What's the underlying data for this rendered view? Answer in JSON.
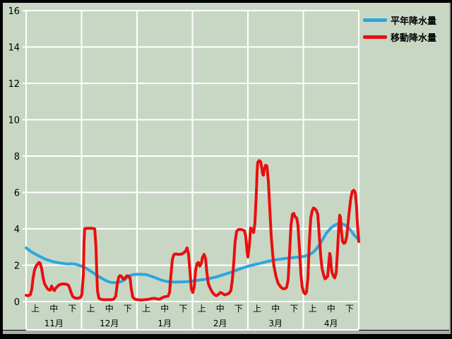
{
  "window": {
    "title": ""
  },
  "colors": {
    "background": "#c8d7c4",
    "grid": "#ffffff",
    "text": "#000000",
    "border": "#000000",
    "bezel": "#a9ada9",
    "series_blue": "#2ba6e0",
    "series_red": "#e80f0f"
  },
  "legend": {
    "items": [
      {
        "label": "平年降水量",
        "color": "#2ba6e0"
      },
      {
        "label": "移動降水量",
        "color": "#e80f0f"
      }
    ]
  },
  "chart_data": {
    "type": "line",
    "title": "",
    "xlabel": "",
    "ylabel": "",
    "ylim": [
      0,
      16
    ],
    "y_ticks": [
      0,
      2,
      4,
      6,
      8,
      10,
      12,
      14,
      16
    ],
    "grid": true,
    "legend_position": "top-right",
    "x_axis": {
      "unit": "10-day period (旬); x = period index, 3 per month, 0 = start of 11月上, 18 = end of 4月下",
      "months": [
        "11月",
        "12月",
        "1月",
        "2月",
        "3月",
        "4月"
      ],
      "period_labels": [
        "上",
        "中",
        "下"
      ]
    },
    "series": [
      {
        "name": "平年降水量",
        "color": "#2ba6e0",
        "width": 4,
        "points": [
          [
            0,
            2.95
          ],
          [
            0.31,
            2.72
          ],
          [
            0.69,
            2.5
          ],
          [
            1.07,
            2.32
          ],
          [
            1.45,
            2.2
          ],
          [
            1.83,
            2.12
          ],
          [
            2.22,
            2.07
          ],
          [
            2.48,
            2.08
          ],
          [
            2.71,
            2.05
          ],
          [
            2.9,
            1.98
          ],
          [
            3.1,
            1.9
          ],
          [
            3.29,
            1.8
          ],
          [
            3.48,
            1.68
          ],
          [
            3.67,
            1.55
          ],
          [
            3.86,
            1.42
          ],
          [
            4.05,
            1.3
          ],
          [
            4.24,
            1.2
          ],
          [
            4.43,
            1.1
          ],
          [
            4.62,
            1.05
          ],
          [
            4.82,
            1.04
          ],
          [
            5.01,
            1.06
          ],
          [
            5.2,
            1.12
          ],
          [
            5.39,
            1.25
          ],
          [
            5.58,
            1.4
          ],
          [
            5.77,
            1.48
          ],
          [
            5.96,
            1.5
          ],
          [
            6.23,
            1.5
          ],
          [
            6.5,
            1.48
          ],
          [
            6.69,
            1.42
          ],
          [
            6.88,
            1.35
          ],
          [
            7.07,
            1.28
          ],
          [
            7.26,
            1.2
          ],
          [
            7.45,
            1.14
          ],
          [
            7.64,
            1.1
          ],
          [
            7.83,
            1.08
          ],
          [
            8.14,
            1.07
          ],
          [
            8.45,
            1.08
          ],
          [
            8.75,
            1.1
          ],
          [
            9.06,
            1.14
          ],
          [
            9.36,
            1.18
          ],
          [
            9.67,
            1.22
          ],
          [
            9.97,
            1.28
          ],
          [
            10.28,
            1.35
          ],
          [
            10.59,
            1.45
          ],
          [
            10.89,
            1.55
          ],
          [
            11.2,
            1.65
          ],
          [
            11.5,
            1.77
          ],
          [
            11.81,
            1.88
          ],
          [
            12.11,
            1.97
          ],
          [
            12.42,
            2.05
          ],
          [
            12.73,
            2.12
          ],
          [
            13.03,
            2.2
          ],
          [
            13.34,
            2.27
          ],
          [
            13.64,
            2.32
          ],
          [
            13.95,
            2.36
          ],
          [
            14.25,
            2.4
          ],
          [
            14.56,
            2.43
          ],
          [
            14.87,
            2.46
          ],
          [
            15.1,
            2.5
          ],
          [
            15.32,
            2.58
          ],
          [
            15.52,
            2.7
          ],
          [
            15.67,
            2.85
          ],
          [
            15.78,
            3.0
          ],
          [
            15.9,
            3.15
          ],
          [
            16.01,
            3.35
          ],
          [
            16.13,
            3.55
          ],
          [
            16.24,
            3.75
          ],
          [
            16.36,
            3.9
          ],
          [
            16.47,
            4.02
          ],
          [
            16.58,
            4.12
          ],
          [
            16.7,
            4.2
          ],
          [
            16.81,
            4.26
          ],
          [
            16.97,
            4.28
          ],
          [
            17.12,
            4.27
          ],
          [
            17.27,
            4.2
          ],
          [
            17.42,
            4.08
          ],
          [
            17.58,
            3.9
          ],
          [
            17.73,
            3.68
          ],
          [
            17.84,
            3.55
          ],
          [
            17.92,
            3.47
          ],
          [
            18,
            3.4
          ]
        ]
      },
      {
        "name": "移動降水量",
        "color": "#e80f0f",
        "width": 4,
        "points": [
          [
            0,
            0.35
          ],
          [
            0.11,
            0.32
          ],
          [
            0.23,
            0.38
          ],
          [
            0.31,
            0.7
          ],
          [
            0.38,
            1.3
          ],
          [
            0.46,
            1.75
          ],
          [
            0.54,
            1.95
          ],
          [
            0.61,
            2.05
          ],
          [
            0.69,
            2.15
          ],
          [
            0.76,
            2.1
          ],
          [
            0.84,
            1.8
          ],
          [
            0.92,
            1.3
          ],
          [
            0.99,
            1.0
          ],
          [
            1.07,
            0.85
          ],
          [
            1.15,
            0.72
          ],
          [
            1.22,
            0.65
          ],
          [
            1.3,
            0.63
          ],
          [
            1.38,
            0.85
          ],
          [
            1.45,
            0.7
          ],
          [
            1.53,
            0.6
          ],
          [
            1.61,
            0.75
          ],
          [
            1.68,
            0.82
          ],
          [
            1.76,
            0.9
          ],
          [
            1.87,
            0.95
          ],
          [
            2.03,
            0.97
          ],
          [
            2.18,
            0.95
          ],
          [
            2.29,
            0.9
          ],
          [
            2.37,
            0.7
          ],
          [
            2.45,
            0.45
          ],
          [
            2.52,
            0.28
          ],
          [
            2.64,
            0.2
          ],
          [
            2.79,
            0.18
          ],
          [
            2.94,
            0.22
          ],
          [
            3.02,
            0.4
          ],
          [
            3.1,
            1.5
          ],
          [
            3.13,
            3.2
          ],
          [
            3.17,
            4.0
          ],
          [
            3.25,
            4.03
          ],
          [
            3.4,
            4.03
          ],
          [
            3.55,
            4.03
          ],
          [
            3.71,
            4.0
          ],
          [
            3.78,
            3.0
          ],
          [
            3.82,
            1.6
          ],
          [
            3.86,
            0.6
          ],
          [
            3.94,
            0.18
          ],
          [
            4.05,
            0.12
          ],
          [
            4.2,
            0.1
          ],
          [
            4.39,
            0.1
          ],
          [
            4.59,
            0.1
          ],
          [
            4.74,
            0.13
          ],
          [
            4.85,
            0.3
          ],
          [
            4.93,
            0.95
          ],
          [
            5.01,
            1.35
          ],
          [
            5.08,
            1.43
          ],
          [
            5.16,
            1.38
          ],
          [
            5.24,
            1.25
          ],
          [
            5.31,
            1.22
          ],
          [
            5.39,
            1.35
          ],
          [
            5.47,
            1.42
          ],
          [
            5.54,
            1.4
          ],
          [
            5.62,
            1.3
          ],
          [
            5.69,
            0.7
          ],
          [
            5.77,
            0.25
          ],
          [
            5.89,
            0.13
          ],
          [
            6.04,
            0.1
          ],
          [
            6.23,
            0.08
          ],
          [
            6.42,
            0.1
          ],
          [
            6.61,
            0.12
          ],
          [
            6.76,
            0.16
          ],
          [
            6.92,
            0.18
          ],
          [
            7.07,
            0.15
          ],
          [
            7.22,
            0.13
          ],
          [
            7.38,
            0.22
          ],
          [
            7.53,
            0.27
          ],
          [
            7.68,
            0.3
          ],
          [
            7.76,
            0.5
          ],
          [
            7.83,
            1.4
          ],
          [
            7.91,
            2.3
          ],
          [
            7.99,
            2.58
          ],
          [
            8.1,
            2.62
          ],
          [
            8.22,
            2.6
          ],
          [
            8.33,
            2.6
          ],
          [
            8.45,
            2.63
          ],
          [
            8.56,
            2.7
          ],
          [
            8.64,
            2.8
          ],
          [
            8.71,
            2.95
          ],
          [
            8.79,
            2.6
          ],
          [
            8.87,
            1.6
          ],
          [
            8.94,
            0.7
          ],
          [
            9.02,
            0.5
          ],
          [
            9.1,
            0.8
          ],
          [
            9.17,
            1.7
          ],
          [
            9.25,
            2.1
          ],
          [
            9.32,
            2.15
          ],
          [
            9.4,
            1.95
          ],
          [
            9.48,
            2.1
          ],
          [
            9.55,
            2.45
          ],
          [
            9.63,
            2.6
          ],
          [
            9.71,
            2.35
          ],
          [
            9.78,
            1.6
          ],
          [
            9.86,
            1.0
          ],
          [
            9.94,
            0.78
          ],
          [
            10.05,
            0.55
          ],
          [
            10.17,
            0.4
          ],
          [
            10.28,
            0.32
          ],
          [
            10.39,
            0.38
          ],
          [
            10.51,
            0.5
          ],
          [
            10.62,
            0.45
          ],
          [
            10.74,
            0.37
          ],
          [
            10.85,
            0.4
          ],
          [
            10.97,
            0.45
          ],
          [
            11.08,
            0.6
          ],
          [
            11.16,
            1.2
          ],
          [
            11.24,
            2.2
          ],
          [
            11.31,
            3.3
          ],
          [
            11.39,
            3.85
          ],
          [
            11.47,
            3.95
          ],
          [
            11.58,
            3.97
          ],
          [
            11.69,
            3.95
          ],
          [
            11.81,
            3.9
          ],
          [
            11.88,
            3.6
          ],
          [
            11.96,
            2.7
          ],
          [
            12.0,
            2.45
          ],
          [
            12.08,
            3.1
          ],
          [
            12.15,
            4.05
          ],
          [
            12.23,
            3.95
          ],
          [
            12.31,
            3.8
          ],
          [
            12.38,
            4.3
          ],
          [
            12.46,
            6.0
          ],
          [
            12.5,
            7.2
          ],
          [
            12.53,
            7.65
          ],
          [
            12.61,
            7.75
          ],
          [
            12.69,
            7.68
          ],
          [
            12.76,
            7.3
          ],
          [
            12.8,
            7.0
          ],
          [
            12.84,
            6.95
          ],
          [
            12.88,
            7.25
          ],
          [
            12.96,
            7.5
          ],
          [
            13.03,
            7.45
          ],
          [
            13.11,
            6.6
          ],
          [
            13.18,
            5.2
          ],
          [
            13.26,
            3.6
          ],
          [
            13.34,
            2.6
          ],
          [
            13.41,
            1.95
          ],
          [
            13.53,
            1.35
          ],
          [
            13.64,
            1.0
          ],
          [
            13.76,
            0.82
          ],
          [
            13.87,
            0.72
          ],
          [
            13.99,
            0.7
          ],
          [
            14.1,
            0.78
          ],
          [
            14.18,
            1.2
          ],
          [
            14.25,
            2.6
          ],
          [
            14.33,
            4.2
          ],
          [
            14.41,
            4.8
          ],
          [
            14.48,
            4.85
          ],
          [
            14.56,
            4.65
          ],
          [
            14.64,
            4.6
          ],
          [
            14.71,
            4.2
          ],
          [
            14.79,
            2.9
          ],
          [
            14.87,
            1.5
          ],
          [
            14.94,
            0.8
          ],
          [
            15.02,
            0.52
          ],
          [
            15.1,
            0.42
          ],
          [
            15.17,
            0.5
          ],
          [
            15.25,
            1.3
          ],
          [
            15.32,
            3.2
          ],
          [
            15.4,
            4.6
          ],
          [
            15.48,
            5.0
          ],
          [
            15.55,
            5.15
          ],
          [
            15.63,
            5.1
          ],
          [
            15.71,
            5.0
          ],
          [
            15.78,
            4.8
          ],
          [
            15.86,
            3.7
          ],
          [
            15.94,
            2.5
          ],
          [
            16.01,
            1.85
          ],
          [
            16.09,
            1.5
          ],
          [
            16.17,
            1.25
          ],
          [
            16.24,
            1.3
          ],
          [
            16.32,
            1.4
          ],
          [
            16.39,
            2.3
          ],
          [
            16.43,
            2.65
          ],
          [
            16.47,
            2.45
          ],
          [
            16.51,
            1.9
          ],
          [
            16.55,
            1.6
          ],
          [
            16.62,
            1.42
          ],
          [
            16.7,
            1.3
          ],
          [
            16.78,
            1.6
          ],
          [
            16.85,
            2.8
          ],
          [
            16.93,
            4.3
          ],
          [
            16.97,
            4.75
          ],
          [
            17.01,
            4.65
          ],
          [
            17.05,
            4.0
          ],
          [
            17.12,
            3.3
          ],
          [
            17.2,
            3.2
          ],
          [
            17.27,
            3.25
          ],
          [
            17.35,
            3.6
          ],
          [
            17.42,
            4.3
          ],
          [
            17.5,
            5.1
          ],
          [
            17.58,
            5.75
          ],
          [
            17.65,
            6.05
          ],
          [
            17.73,
            6.12
          ],
          [
            17.81,
            6.0
          ],
          [
            17.88,
            5.2
          ],
          [
            17.92,
            4.4
          ],
          [
            17.96,
            3.8
          ],
          [
            18,
            3.3
          ]
        ]
      }
    ]
  }
}
